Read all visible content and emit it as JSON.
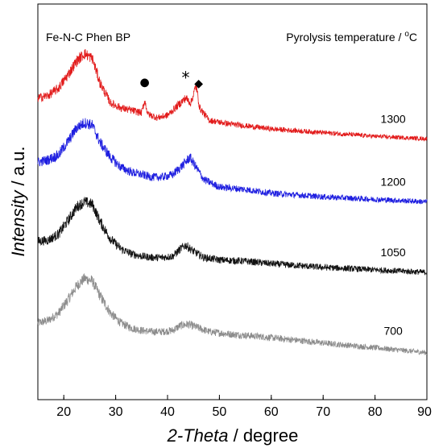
{
  "chart_data": {
    "type": "line",
    "title": "",
    "xlabel": {
      "italic": "2-Theta",
      "rest": " / degree"
    },
    "ylabel": {
      "italic": "Intensity",
      "rest": " / a.u."
    },
    "xlim": [
      15,
      90
    ],
    "xticks": [
      20,
      30,
      40,
      50,
      60,
      70,
      80,
      90
    ],
    "y_ticks_shown": false,
    "grid": false,
    "sample_label": "Fe-N-C Phen BP",
    "legend_title": {
      "text": "Pyrolysis temperature / ",
      "super": "o",
      "unit": "C"
    },
    "markers": [
      {
        "symbol": "●",
        "x": 35.6,
        "series": "1300"
      },
      {
        "symbol": "*",
        "x": 43.5,
        "series": "1300"
      },
      {
        "symbol": "◆",
        "x": 46.0,
        "series": "1300"
      }
    ],
    "series": [
      {
        "name": "1300",
        "color": "#e21b1b",
        "baseline": 1.05,
        "points": [
          [
            15,
            1.22
          ],
          [
            17,
            1.23
          ],
          [
            19,
            1.26
          ],
          [
            21,
            1.32
          ],
          [
            22.5,
            1.37
          ],
          [
            24,
            1.4
          ],
          [
            25.5,
            1.38
          ],
          [
            27,
            1.28
          ],
          [
            29,
            1.2
          ],
          [
            31,
            1.18
          ],
          [
            33,
            1.17
          ],
          [
            35,
            1.16
          ],
          [
            35.6,
            1.21
          ],
          [
            36.2,
            1.155
          ],
          [
            38,
            1.14
          ],
          [
            40,
            1.15
          ],
          [
            42,
            1.19
          ],
          [
            43.5,
            1.22
          ],
          [
            44.5,
            1.2
          ],
          [
            45.5,
            1.27
          ],
          [
            46.2,
            1.18
          ],
          [
            48,
            1.13
          ],
          [
            52,
            1.115
          ],
          [
            60,
            1.095
          ],
          [
            70,
            1.08
          ],
          [
            80,
            1.065
          ],
          [
            90,
            1.055
          ]
        ]
      },
      {
        "name": "1200",
        "color": "#1e1ee0",
        "baseline": 0.75,
        "points": [
          [
            15,
            0.96
          ],
          [
            17,
            0.97
          ],
          [
            19,
            0.99
          ],
          [
            21,
            1.05
          ],
          [
            22.5,
            1.1
          ],
          [
            24,
            1.12
          ],
          [
            25.5,
            1.11
          ],
          [
            27,
            1.04
          ],
          [
            29,
            0.98
          ],
          [
            31,
            0.94
          ],
          [
            33,
            0.92
          ],
          [
            35,
            0.91
          ],
          [
            37,
            0.9
          ],
          [
            39,
            0.9
          ],
          [
            41,
            0.91
          ],
          [
            43,
            0.95
          ],
          [
            44.3,
            0.98
          ],
          [
            45.5,
            0.94
          ],
          [
            47,
            0.89
          ],
          [
            50,
            0.86
          ],
          [
            55,
            0.85
          ],
          [
            60,
            0.835
          ],
          [
            70,
            0.82
          ],
          [
            80,
            0.81
          ],
          [
            90,
            0.8
          ]
        ]
      },
      {
        "name": "1050",
        "color": "#111111",
        "baseline": 0.45,
        "points": [
          [
            15,
            0.64
          ],
          [
            17,
            0.645
          ],
          [
            19,
            0.67
          ],
          [
            21,
            0.73
          ],
          [
            22.5,
            0.78
          ],
          [
            24,
            0.8
          ],
          [
            25.5,
            0.79
          ],
          [
            27,
            0.72
          ],
          [
            29,
            0.65
          ],
          [
            31,
            0.61
          ],
          [
            33,
            0.59
          ],
          [
            35,
            0.58
          ],
          [
            37,
            0.575
          ],
          [
            39,
            0.575
          ],
          [
            41,
            0.58
          ],
          [
            42.5,
            0.61
          ],
          [
            43.5,
            0.625
          ],
          [
            45,
            0.6
          ],
          [
            47,
            0.575
          ],
          [
            50,
            0.565
          ],
          [
            55,
            0.56
          ],
          [
            60,
            0.55
          ],
          [
            70,
            0.535
          ],
          [
            80,
            0.525
          ],
          [
            90,
            0.515
          ]
        ]
      },
      {
        "name": "700",
        "color": "#8c8c8c",
        "baseline": 0.15,
        "points": [
          [
            15,
            0.31
          ],
          [
            17,
            0.32
          ],
          [
            19,
            0.35
          ],
          [
            21,
            0.41
          ],
          [
            22.5,
            0.46
          ],
          [
            24,
            0.49
          ],
          [
            25.5,
            0.48
          ],
          [
            27,
            0.42
          ],
          [
            29,
            0.35
          ],
          [
            31,
            0.31
          ],
          [
            33,
            0.29
          ],
          [
            35,
            0.28
          ],
          [
            37,
            0.275
          ],
          [
            39,
            0.275
          ],
          [
            41,
            0.28
          ],
          [
            42.5,
            0.3
          ],
          [
            44,
            0.305
          ],
          [
            46,
            0.29
          ],
          [
            48,
            0.275
          ],
          [
            52,
            0.265
          ],
          [
            58,
            0.255
          ],
          [
            65,
            0.24
          ],
          [
            72,
            0.225
          ],
          [
            80,
            0.21
          ],
          [
            90,
            0.19
          ]
        ]
      }
    ]
  }
}
